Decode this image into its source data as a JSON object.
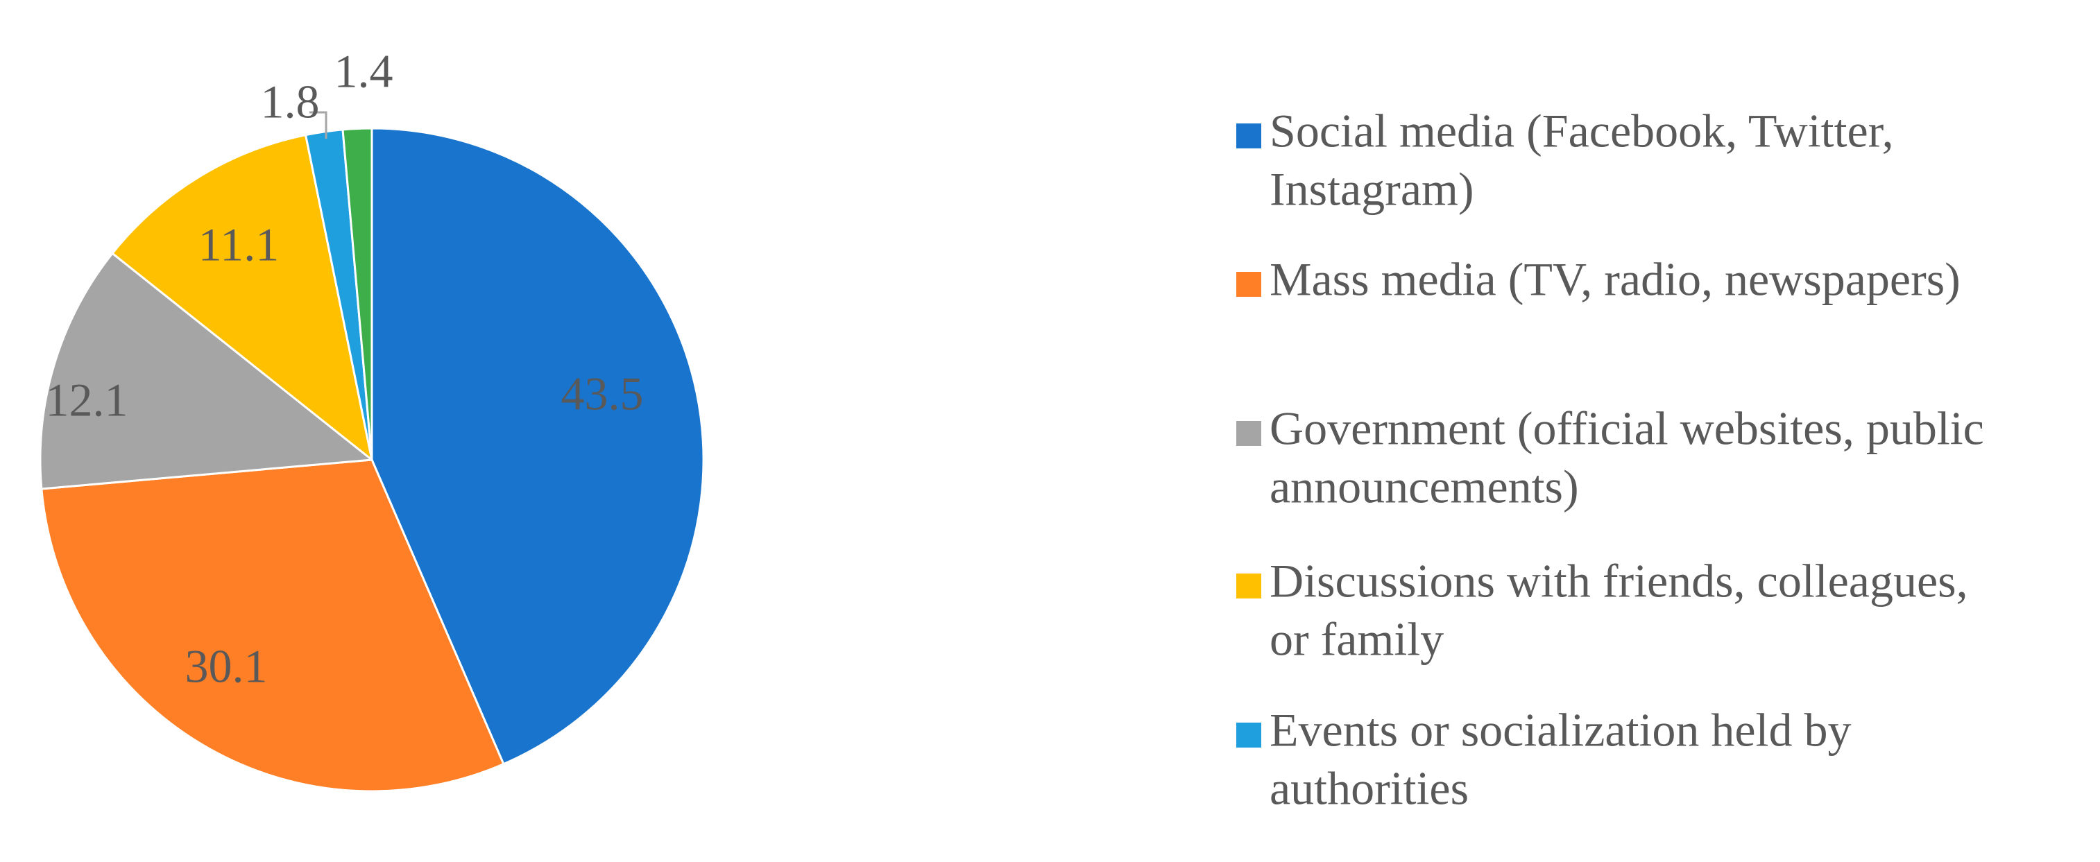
{
  "chart_data": {
    "type": "pie",
    "title": "",
    "start_angle_deg": 0,
    "direction": "clockwise",
    "legend_position": "right",
    "slices": [
      {
        "label": "Social media (Facebook, Twitter, Instagram)",
        "value": 43.5,
        "display": "43.5",
        "color": "#1874CD"
      },
      {
        "label": "Mass media (TV, radio, newspapers)",
        "value": 30.1,
        "display": "30.1",
        "color": "#FF7F27"
      },
      {
        "label": "Government (official websites, public announcements)",
        "value": 12.1,
        "display": "12.1",
        "color": "#A5A5A5"
      },
      {
        "label": "Discussions with friends, colleagues, or family",
        "value": 11.1,
        "display": "11.1",
        "color": "#FFC000"
      },
      {
        "label": "Events or socialization held by authorities",
        "value": 1.8,
        "display": "1.8",
        "color": "#1F9FDE"
      },
      {
        "label": "",
        "value": 1.4,
        "display": "1.4",
        "color": "#3DAE49"
      }
    ],
    "legend": [
      {
        "slice_index": 0,
        "lines": [
          "Social media (Facebook, Twitter,",
          "Instagram)"
        ]
      },
      {
        "slice_index": 1,
        "lines": [
          "Mass media (TV, radio, newspapers)"
        ]
      },
      {
        "slice_index": 2,
        "lines": [
          "Government (official websites, public",
          "announcements)"
        ]
      },
      {
        "slice_index": 3,
        "lines": [
          "Discussions with friends, colleagues,",
          "or family"
        ]
      },
      {
        "slice_index": 4,
        "lines": [
          "Events or socialization held by",
          "authorities"
        ]
      }
    ]
  }
}
